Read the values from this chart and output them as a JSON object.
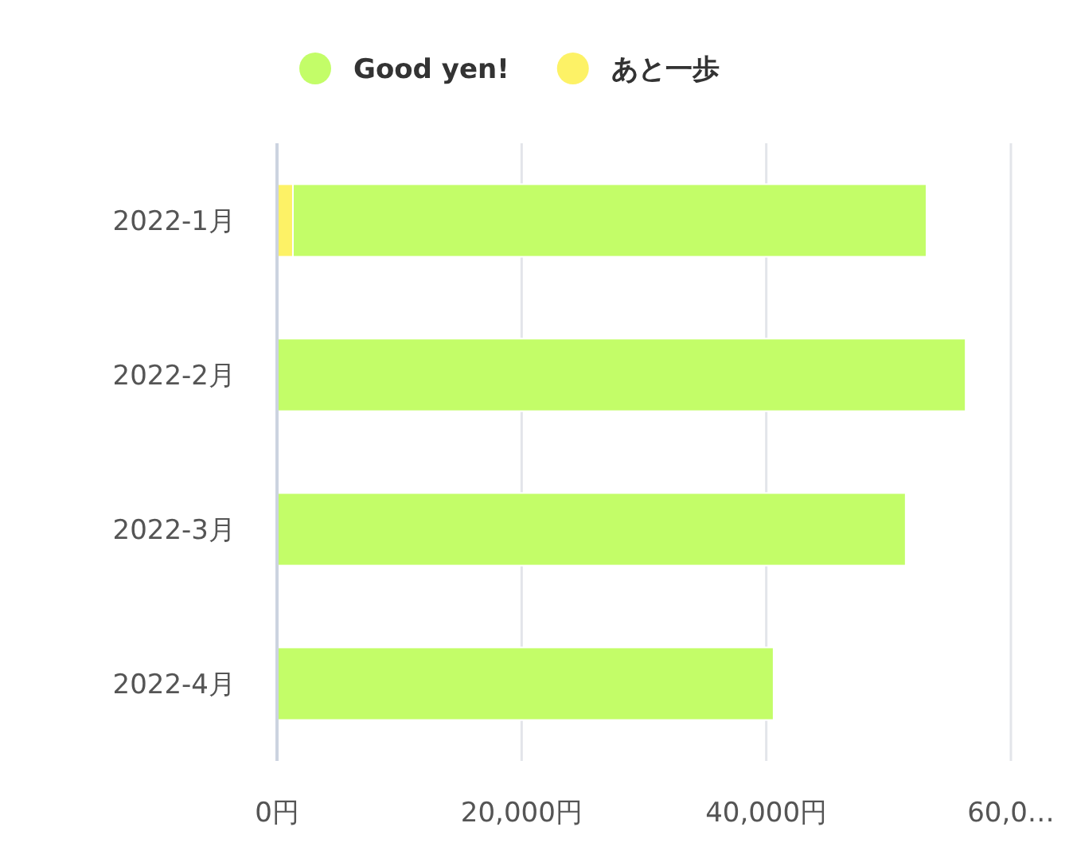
{
  "chart_data": {
    "type": "bar",
    "orientation": "horizontal",
    "stacked": true,
    "categories": [
      "2022-1月",
      "2022-2月",
      "2022-3月",
      "2022-4月"
    ],
    "series": [
      {
        "name": "あと一歩",
        "color": "#fdf266",
        "values": [
          1300,
          null,
          null,
          null
        ]
      },
      {
        "name": "Good yen!",
        "color": "#c3fd68",
        "values": [
          51800,
          56300,
          51400,
          40600
        ]
      }
    ],
    "xlim": [
      0,
      60000
    ],
    "xticks": [
      {
        "value": 0,
        "label": "0円"
      },
      {
        "value": 20000,
        "label": "20,000円"
      },
      {
        "value": 40000,
        "label": "40,000円"
      },
      {
        "value": 60000,
        "label": "60,0…"
      }
    ],
    "grid": "x",
    "legend": "top"
  }
}
